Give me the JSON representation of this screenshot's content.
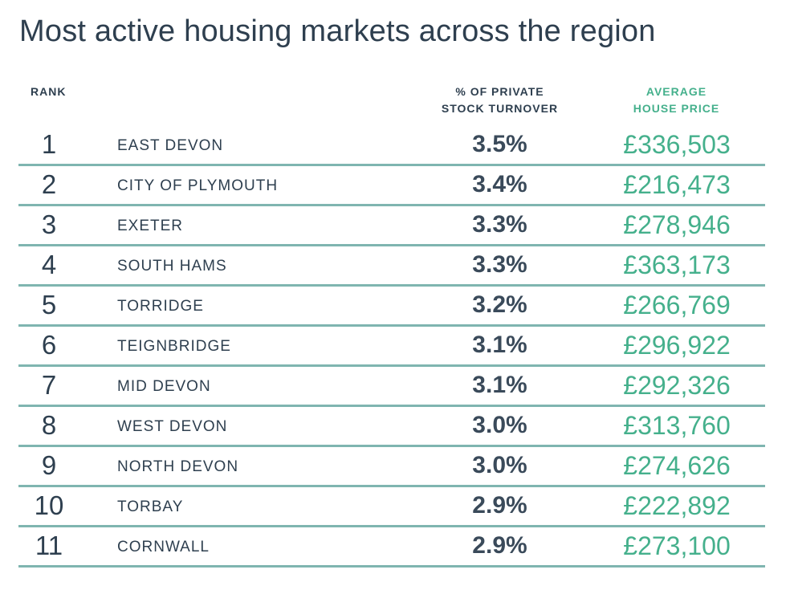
{
  "title": "Most active housing markets across the region",
  "headers": {
    "rank": "RANK",
    "turnover_line1": "% OF PRIVATE",
    "turnover_line2": "STOCK TURNOVER",
    "price_line1": "AVERAGE",
    "price_line2": "HOUSE PRICE"
  },
  "colors": {
    "text": "#2e3f4f",
    "accent": "#45b08c",
    "divider": "#7fb5b0"
  },
  "rows": [
    {
      "rank": "1",
      "area": "EAST DEVON",
      "turnover": "3.5%",
      "price": "£336,503"
    },
    {
      "rank": "2",
      "area": "CITY OF PLYMOUTH",
      "turnover": "3.4%",
      "price": "£216,473"
    },
    {
      "rank": "3",
      "area": "EXETER",
      "turnover": "3.3%",
      "price": "£278,946"
    },
    {
      "rank": "4",
      "area": "SOUTH HAMS",
      "turnover": "3.3%",
      "price": "£363,173"
    },
    {
      "rank": "5",
      "area": "TORRIDGE",
      "turnover": "3.2%",
      "price": "£266,769"
    },
    {
      "rank": "6",
      "area": "TEIGNBRIDGE",
      "turnover": "3.1%",
      "price": "£296,922"
    },
    {
      "rank": "7",
      "area": "MID DEVON",
      "turnover": "3.1%",
      "price": "£292,326"
    },
    {
      "rank": "8",
      "area": "WEST DEVON",
      "turnover": "3.0%",
      "price": "£313,760"
    },
    {
      "rank": "9",
      "area": "NORTH DEVON",
      "turnover": "3.0%",
      "price": "£274,626"
    },
    {
      "rank": "10",
      "area": "TORBAY",
      "turnover": "2.9%",
      "price": "£222,892"
    },
    {
      "rank": "11",
      "area": "CORNWALL",
      "turnover": "2.9%",
      "price": "£273,100"
    }
  ],
  "chart_data": {
    "type": "table",
    "title": "Most active housing markets across the region",
    "columns": [
      "RANK",
      "",
      "% OF PRIVATE STOCK TURNOVER",
      "AVERAGE HOUSE PRICE"
    ],
    "categories": [
      "EAST DEVON",
      "CITY OF PLYMOUTH",
      "EXETER",
      "SOUTH HAMS",
      "TORRIDGE",
      "TEIGNBRIDGE",
      "MID DEVON",
      "WEST DEVON",
      "NORTH DEVON",
      "TORBAY",
      "CORNWALL"
    ],
    "series": [
      {
        "name": "% OF PRIVATE STOCK TURNOVER",
        "values": [
          3.5,
          3.4,
          3.3,
          3.3,
          3.2,
          3.1,
          3.1,
          3.0,
          3.0,
          2.9,
          2.9
        ]
      },
      {
        "name": "AVERAGE HOUSE PRICE",
        "values": [
          336503,
          216473,
          278946,
          363173,
          266769,
          296922,
          292326,
          313760,
          274626,
          222892,
          273100
        ]
      }
    ]
  }
}
